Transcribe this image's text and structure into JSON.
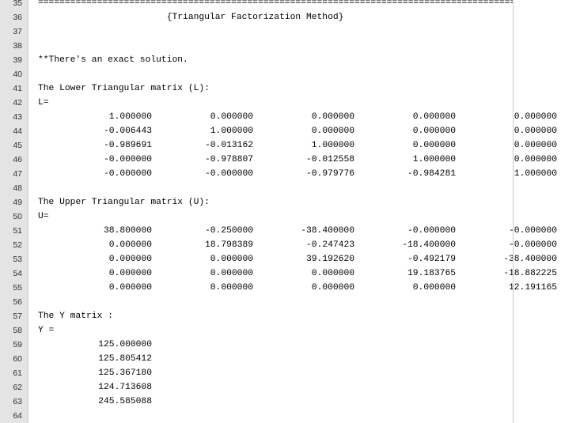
{
  "lines": [
    {
      "n": "35",
      "text": "==============================================================================================="
    },
    {
      "n": "36",
      "text": "                        {Triangular Factorization Method}"
    },
    {
      "n": "37",
      "text": ""
    },
    {
      "n": "38",
      "text": ""
    },
    {
      "n": "39",
      "text": "**There's an exact solution."
    },
    {
      "n": "40",
      "text": ""
    },
    {
      "n": "41",
      "text": "The Lower Triangular matrix (L):"
    },
    {
      "n": "42",
      "text": "L="
    },
    {
      "n": "43",
      "cells": [
        "1.000000",
        "0.000000",
        "0.000000",
        "0.000000",
        "0.000000"
      ]
    },
    {
      "n": "44",
      "cells": [
        "-0.006443",
        "1.000000",
        "0.000000",
        "0.000000",
        "0.000000"
      ]
    },
    {
      "n": "45",
      "cells": [
        "-0.989691",
        "-0.013162",
        "1.000000",
        "0.000000",
        "0.000000"
      ]
    },
    {
      "n": "46",
      "cells": [
        "-0.000000",
        "-0.978807",
        "-0.012558",
        "1.000000",
        "0.000000"
      ]
    },
    {
      "n": "47",
      "cells": [
        "-0.000000",
        "-0.000000",
        "-0.979776",
        "-0.984281",
        "1.000000"
      ]
    },
    {
      "n": "48",
      "text": ""
    },
    {
      "n": "49",
      "text": "The Upper Triangular matrix (U):"
    },
    {
      "n": "50",
      "text": "U="
    },
    {
      "n": "51",
      "cells": [
        "38.800000",
        "-0.250000",
        "-38.400000",
        "-0.000000",
        "-0.000000"
      ]
    },
    {
      "n": "52",
      "cells": [
        "0.000000",
        "18.798389",
        "-0.247423",
        "-18.400000",
        "-0.000000"
      ]
    },
    {
      "n": "53",
      "cells": [
        "0.000000",
        "0.000000",
        "39.192620",
        "-0.492179",
        "-38.400000"
      ]
    },
    {
      "n": "54",
      "cells": [
        "0.000000",
        "0.000000",
        "0.000000",
        "19.183765",
        "-18.882225"
      ]
    },
    {
      "n": "55",
      "cells": [
        "0.000000",
        "0.000000",
        "0.000000",
        "0.000000",
        "12.191165"
      ]
    },
    {
      "n": "56",
      "text": ""
    },
    {
      "n": "57",
      "text": "The Y matrix :"
    },
    {
      "n": "58",
      "text": "Y ="
    },
    {
      "n": "59",
      "cells": [
        "125.000000"
      ]
    },
    {
      "n": "60",
      "cells": [
        "125.805412"
      ]
    },
    {
      "n": "61",
      "cells": [
        "125.367180"
      ]
    },
    {
      "n": "62",
      "cells": [
        "124.713608"
      ]
    },
    {
      "n": "63",
      "cells": [
        "245.585088"
      ]
    },
    {
      "n": "64",
      "text": ""
    }
  ]
}
